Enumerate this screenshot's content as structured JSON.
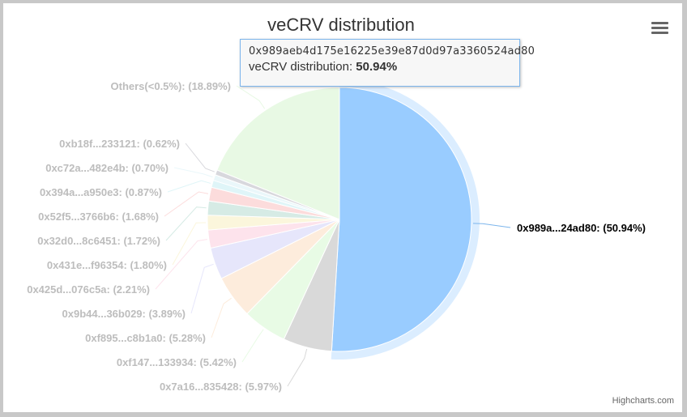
{
  "tooltip": {
    "address": "0x989aeb4d175e16225e39e87d0d97a3360524ad80",
    "series_name": "veCRV distribution",
    "value_label": "50.94%"
  },
  "credits": "Highcharts.com",
  "chart_data": {
    "type": "pie",
    "title": "veCRV distribution",
    "series_name": "veCRV distribution",
    "data": [
      {
        "name": "0x989a...24ad80",
        "y": 50.94,
        "label": "0x989a...24ad80: (50.94%)",
        "color": "#99ccff",
        "hover": true
      },
      {
        "name": "0x7a16...835428",
        "y": 5.97,
        "label": "0x7a16...835428: (5.97%)",
        "color": "#d9d9d9"
      },
      {
        "name": "0xf147...133934",
        "y": 5.42,
        "label": "0xf147...133934: (5.42%)",
        "color": "#e8fbe5"
      },
      {
        "name": "0xf895...c8b1a0",
        "y": 5.28,
        "label": "0xf895...c8b1a0: (5.28%)",
        "color": "#fdecdc"
      },
      {
        "name": "0x9b44...36b029",
        "y": 3.89,
        "label": "0x9b44...36b029: (3.89%)",
        "color": "#e6e6fb"
      },
      {
        "name": "0x425d...076c5a",
        "y": 2.21,
        "label": "0x425d...076c5a: (2.21%)",
        "color": "#fde3ec"
      },
      {
        "name": "0x431e...f96354",
        "y": 1.8,
        "label": "0x431e...f96354: (1.80%)",
        "color": "#fbf6dc"
      },
      {
        "name": "0x32d0...8c6451",
        "y": 1.72,
        "label": "0x32d0...8c6451: (1.72%)",
        "color": "#d6ebe5"
      },
      {
        "name": "0x52f5...3766b6",
        "y": 1.68,
        "label": "0x52f5...3766b6: (1.68%)",
        "color": "#fcdcdc"
      },
      {
        "name": "0x394a...a950e3",
        "y": 0.87,
        "label": "0x394a...a950e3: (0.87%)",
        "color": "#dff5f8"
      },
      {
        "name": "0xc72a...482e4b",
        "y": 0.7,
        "label": "0xc72a...482e4b: (0.70%)",
        "color": "#eaf7fa"
      },
      {
        "name": "0xb18f...233121",
        "y": 0.62,
        "label": "0xb18f...233121: (0.62%)",
        "color": "#d8d8dd"
      },
      {
        "name": "Others(<0.5%)",
        "y": 18.89,
        "label": "Others(<0.5%): (18.89%)",
        "color": "#e8f9e4"
      }
    ]
  }
}
